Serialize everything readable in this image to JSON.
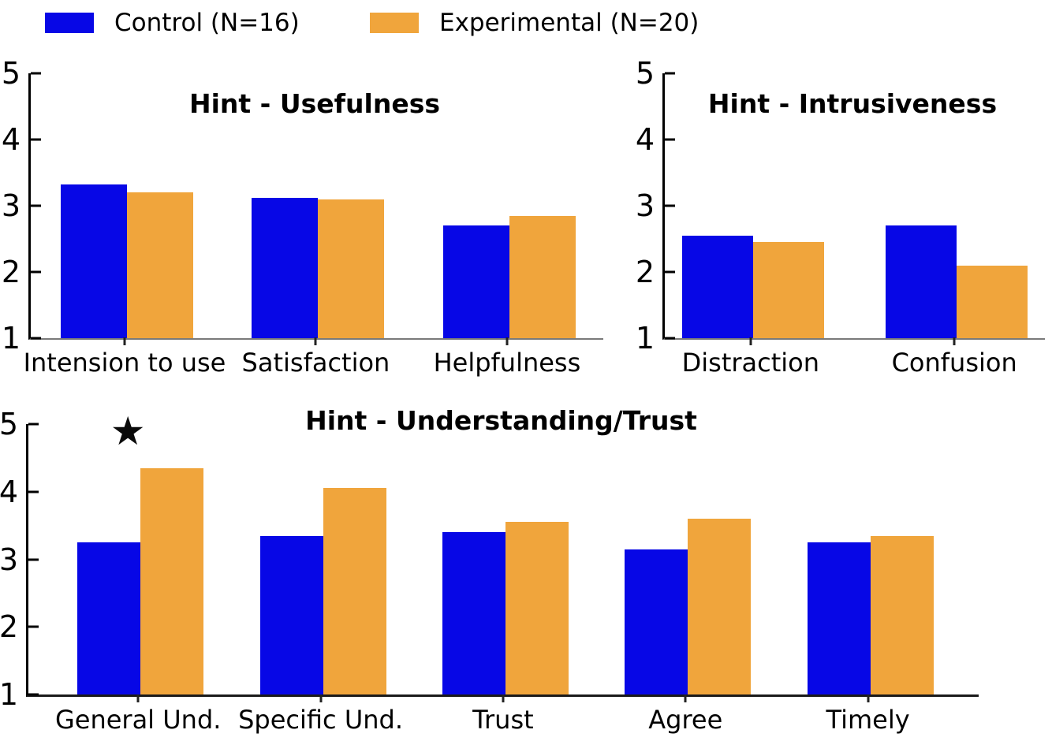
{
  "legend": {
    "items": [
      {
        "label": "Control (N=16)",
        "color": "#0707e6"
      },
      {
        "label": "Experimental (N=20)",
        "color": "#f0a53c"
      }
    ]
  },
  "chart_data": [
    {
      "type": "bar",
      "title": "Hint - Usefulness",
      "categories": [
        "Intension to use",
        "Satisfaction",
        "Helpfulness"
      ],
      "series": [
        {
          "name": "Control (N=16)",
          "color": "#0707e6",
          "values": [
            3.32,
            3.12,
            2.7
          ]
        },
        {
          "name": "Experimental (N=20)",
          "color": "#f0a53c",
          "values": [
            3.2,
            3.1,
            2.84
          ]
        }
      ],
      "ylim": [
        1,
        5
      ],
      "yticks": [
        1,
        2,
        3,
        4,
        5
      ],
      "grid": false,
      "legend_position": "figure-top-left"
    },
    {
      "type": "bar",
      "title": "Hint - Intrusiveness",
      "categories": [
        "Distraction",
        "Confusion"
      ],
      "series": [
        {
          "name": "Control (N=16)",
          "color": "#0707e6",
          "values": [
            2.55,
            2.7
          ]
        },
        {
          "name": "Experimental (N=20)",
          "color": "#f0a53c",
          "values": [
            2.45,
            2.1
          ]
        }
      ],
      "ylim": [
        1,
        5
      ],
      "yticks": [
        1,
        2,
        3,
        4,
        5
      ],
      "grid": false
    },
    {
      "type": "bar",
      "title": "Hint - Understanding/Trust",
      "categories": [
        "General Und.",
        "Specific Und.",
        "Trust",
        "Agree",
        "Timely"
      ],
      "series": [
        {
          "name": "Control (N=16)",
          "color": "#0707e6",
          "values": [
            3.25,
            3.35,
            3.4,
            3.15,
            3.25
          ]
        },
        {
          "name": "Experimental (N=20)",
          "color": "#f0a53c",
          "values": [
            4.35,
            4.05,
            3.55,
            3.6,
            3.35
          ]
        }
      ],
      "ylim": [
        1,
        5
      ],
      "yticks": [
        1,
        2,
        3,
        4,
        5
      ],
      "grid": false,
      "annotations": [
        {
          "symbol": "★",
          "category": "General Und.",
          "y_value": 4.9
        }
      ]
    }
  ]
}
